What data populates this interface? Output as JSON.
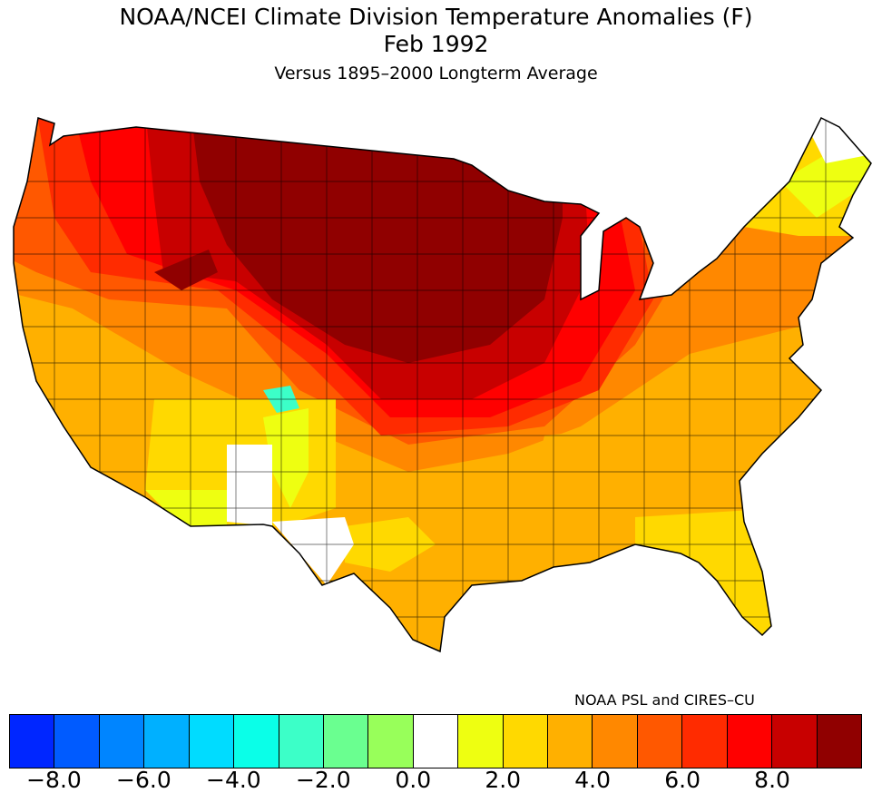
{
  "title": "NOAA/NCEI Climate Division Temperature Anomalies (F)",
  "date": "Feb 1992",
  "subtitle": "Versus 1895–2000 Longterm Average",
  "credit": "NOAA PSL and CIRES–CU",
  "legend": {
    "colors": [
      "#0026ff",
      "#005bff",
      "#0085ff",
      "#00b0ff",
      "#00dcff",
      "#0affe8",
      "#3cffc8",
      "#6aff90",
      "#98ff5a",
      "#ffffff",
      "#eeff11",
      "#ffd900",
      "#ffb000",
      "#ff8800",
      "#ff5800",
      "#ff2b00",
      "#ff0000",
      "#c80000",
      "#900000"
    ],
    "tick_labels": [
      "−8.0",
      "−6.0",
      "−4.0",
      "−2.0",
      "0.0",
      "2.0",
      "4.0",
      "6.0",
      "8.0"
    ]
  }
}
